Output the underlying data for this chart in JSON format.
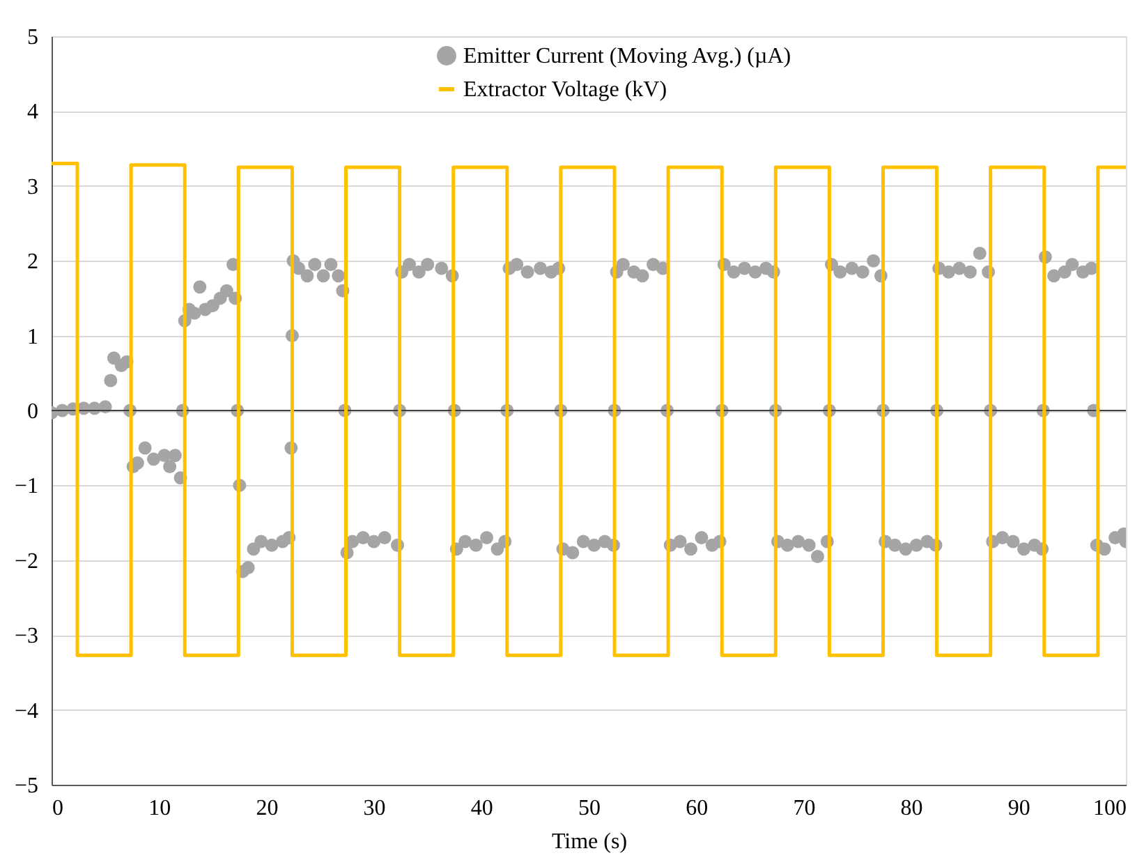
{
  "chart_data": {
    "type": "line",
    "xlabel": "Time (s)",
    "xlim": [
      0,
      100
    ],
    "xticks": [
      0,
      10,
      20,
      30,
      40,
      50,
      60,
      70,
      80,
      90,
      100
    ],
    "ylim": [
      -5,
      5
    ],
    "yticks": [
      -5,
      -4,
      -3,
      -2,
      -1,
      0,
      1,
      2,
      3,
      4,
      5
    ],
    "grid": "y",
    "legend": "top",
    "ref_lines": [
      {
        "axis": "y",
        "value": 0,
        "color": "#404040"
      }
    ],
    "series": [
      {
        "name": "Emitter Current (Moving Avg.) (µA)",
        "type": "scatter",
        "marker": "circle",
        "color": "#a5a5a5",
        "x": [
          0,
          1,
          2,
          3,
          4,
          5,
          5.5,
          5.8,
          6.5,
          7,
          7.3,
          7.6,
          8,
          8.7,
          9.5,
          10.5,
          11,
          11.5,
          12,
          12.2,
          12.4,
          12.8,
          13.3,
          13.8,
          14.3,
          15,
          15.7,
          16.3,
          16.9,
          17.1,
          17.3,
          17.5,
          17.8,
          18.3,
          18.8,
          19.5,
          20.5,
          21.5,
          22.1,
          22.3,
          22.4,
          22.5,
          23,
          23.8,
          24.5,
          25.3,
          26,
          26.7,
          27.1,
          27.3,
          27.5,
          28,
          29,
          30,
          31,
          32.2,
          32.4,
          32.6,
          33.3,
          34.2,
          35,
          36.3,
          37.3,
          37.5,
          37.7,
          38.5,
          39.5,
          40.5,
          41.5,
          42.2,
          42.4,
          42.6,
          43.3,
          44.3,
          45.5,
          46.5,
          47.2,
          47.4,
          47.6,
          48.5,
          49.5,
          50.5,
          51.5,
          52.3,
          52.4,
          52.6,
          53.2,
          54.2,
          55,
          56,
          56.9,
          57.3,
          57.6,
          58.5,
          59.5,
          60.5,
          61.5,
          62.2,
          62.4,
          62.6,
          63.5,
          64.5,
          65.5,
          66.5,
          67.2,
          67.4,
          67.6,
          68.5,
          69.5,
          70.5,
          71.3,
          72.2,
          72.4,
          72.6,
          73.4,
          74.5,
          75.5,
          76.5,
          77.2,
          77.4,
          77.6,
          78.5,
          79.5,
          80.5,
          81.5,
          82.3,
          82.4,
          82.6,
          83.5,
          84.5,
          85.5,
          86.4,
          87.2,
          87.4,
          87.6,
          88.5,
          89.5,
          90.5,
          91.5,
          92.2,
          92.3,
          92.5,
          93.3,
          94.3,
          95,
          96,
          96.8,
          97,
          97.3,
          98,
          99,
          99.8,
          100
        ],
        "values": [
          -0.03,
          0.0,
          0.02,
          0.03,
          0.03,
          0.05,
          0.4,
          0.7,
          0.6,
          0.65,
          0,
          -0.75,
          -0.7,
          -0.5,
          -0.65,
          -0.6,
          -0.75,
          -0.6,
          -0.9,
          0,
          1.2,
          1.35,
          1.3,
          1.65,
          1.35,
          1.4,
          1.5,
          1.6,
          1.95,
          1.5,
          0,
          -1.0,
          -2.15,
          -2.1,
          -1.85,
          -1.75,
          -1.8,
          -1.75,
          -1.7,
          -0.5,
          1.0,
          2.0,
          1.9,
          1.8,
          1.95,
          1.8,
          1.95,
          1.8,
          1.6,
          0,
          -1.9,
          -1.75,
          -1.7,
          -1.75,
          -1.7,
          -1.8,
          0,
          1.85,
          1.95,
          1.85,
          1.95,
          1.9,
          1.8,
          0,
          -1.85,
          -1.75,
          -1.8,
          -1.7,
          -1.85,
          -1.75,
          0,
          1.9,
          1.95,
          1.85,
          1.9,
          1.85,
          1.9,
          0,
          -1.85,
          -1.9,
          -1.75,
          -1.8,
          -1.75,
          -1.8,
          0,
          1.85,
          1.95,
          1.85,
          1.8,
          1.95,
          1.9,
          0,
          -1.8,
          -1.75,
          -1.85,
          -1.7,
          -1.8,
          -1.75,
          0,
          1.95,
          1.85,
          1.9,
          1.85,
          1.9,
          1.85,
          0,
          -1.75,
          -1.8,
          -1.75,
          -1.8,
          -1.95,
          -1.75,
          0,
          1.95,
          1.85,
          1.9,
          1.85,
          2.0,
          1.8,
          0,
          -1.75,
          -1.8,
          -1.85,
          -1.8,
          -1.75,
          -1.8,
          0,
          1.9,
          1.85,
          1.9,
          1.85,
          2.1,
          1.85,
          0,
          -1.75,
          -1.7,
          -1.75,
          -1.85,
          -1.8,
          -1.85,
          0,
          2.05,
          1.8,
          1.85,
          1.95,
          1.85,
          1.9,
          0,
          -1.8,
          -1.85,
          -1.7,
          -1.65,
          -1.75
        ]
      },
      {
        "name": "Extractor Voltage (kV)",
        "type": "line",
        "marker": "none",
        "line_style": "solid",
        "color": "#ffc000",
        "x": [
          0,
          2.4,
          2.4,
          7.4,
          7.4,
          12.4,
          12.4,
          17.4,
          17.4,
          22.4,
          22.4,
          27.4,
          27.4,
          32.4,
          32.4,
          37.4,
          37.4,
          42.4,
          42.4,
          47.4,
          47.4,
          52.4,
          52.4,
          57.4,
          57.4,
          62.4,
          62.4,
          67.4,
          67.4,
          72.4,
          72.4,
          77.4,
          77.4,
          82.4,
          82.4,
          87.4,
          87.4,
          92.4,
          92.4,
          97.4,
          97.4,
          100
        ],
        "values": [
          3.3,
          3.3,
          -3.27,
          -3.27,
          3.28,
          3.28,
          -3.27,
          -3.27,
          3.25,
          3.25,
          -3.27,
          -3.27,
          3.25,
          3.25,
          -3.27,
          -3.27,
          3.25,
          3.25,
          -3.27,
          -3.27,
          3.25,
          3.25,
          -3.27,
          -3.27,
          3.25,
          3.25,
          -3.27,
          -3.27,
          3.25,
          3.25,
          -3.27,
          -3.27,
          3.25,
          3.25,
          -3.27,
          -3.27,
          3.25,
          3.25,
          -3.27,
          -3.27,
          3.25,
          3.25
        ]
      }
    ]
  }
}
